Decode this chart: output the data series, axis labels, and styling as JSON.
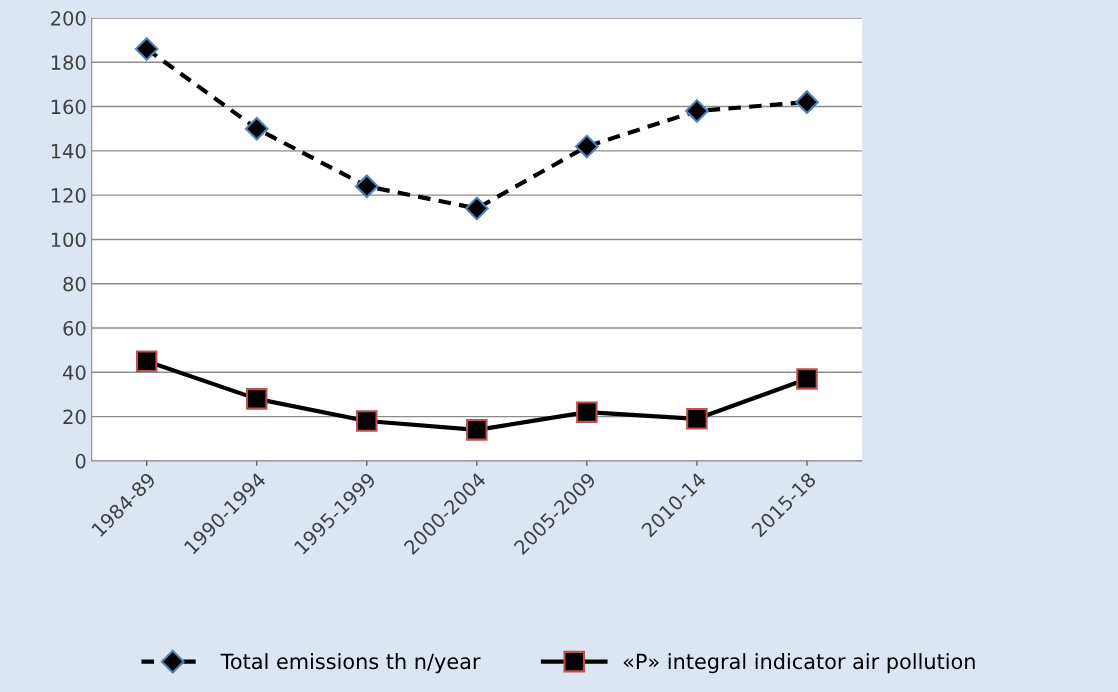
{
  "chart_data": {
    "type": "line",
    "categories": [
      "1984-89",
      "1990-1994",
      "1995-1999",
      "2000-2004",
      "2005-2009",
      "2010-14",
      "2015-18"
    ],
    "series": [
      {
        "name": "Total emissions th n/year",
        "color": "#000000",
        "values": [
          186,
          150,
          124,
          114,
          142,
          158,
          162
        ],
        "marker": "diamond",
        "line_style": "dashed"
      },
      {
        "name": "«P» integral indicator air pollution",
        "color": "#000000",
        "values": [
          45,
          28,
          18,
          14,
          22,
          19,
          37
        ],
        "marker": "square",
        "line_style": "solid"
      }
    ],
    "ylim": [
      0,
      200
    ],
    "yticks": [
      0,
      20,
      40,
      60,
      80,
      100,
      120,
      140,
      160,
      180,
      200
    ],
    "grid": "y",
    "legend": "bottom"
  }
}
